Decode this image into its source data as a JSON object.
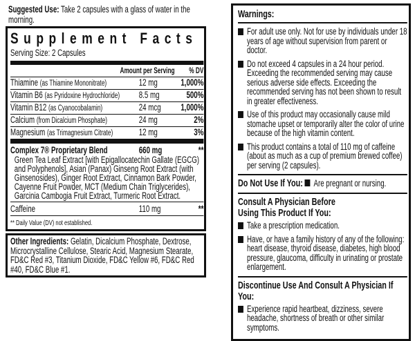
{
  "suggested_use": {
    "label": "Suggested Use:",
    "text": " Take 2 capsules with a glass of water in the morning."
  },
  "facts": {
    "title": "Supplement Facts",
    "serving_size": "Serving Size: 2 Capsules",
    "header": {
      "amount": "Amount per Serving",
      "dv": "% DV"
    },
    "rows": [
      {
        "name": "Thiamine",
        "source": "(as Thiamine Mononitrate)",
        "amount": "12 mg",
        "dv": "1,000%"
      },
      {
        "name": "Vitamin B6",
        "source": "(as Pyridoxine Hydrochloride)",
        "amount": "8.5 mg",
        "dv": "500%"
      },
      {
        "name": "Vitamin B12",
        "source": "(as Cyanocobalamin)",
        "amount": "24 mcg",
        "dv": "1,000%"
      },
      {
        "name": "Calcium",
        "source": "(from Dicalcium Phosphate)",
        "amount": "24 mg",
        "dv": "2%"
      },
      {
        "name": "Magnesium",
        "source": "(as Trimagnesium Citrate)",
        "amount": "12 mg",
        "dv": "3%"
      }
    ],
    "blend": {
      "name": "Complex 7® Proprietary Blend",
      "amount": "660 mg",
      "dv": "**",
      "ingredients": "Green Tea Leaf Extract [with Epigallocatechin Gallate (EGCG) and Polyphenols], Asian (Panax) Ginseng Root Extract (with Ginsenosides), Ginger Root Extract, Cinnamon Bark Powder, Cayenne Fruit Powder, MCT (Medium Chain Triglycerides), Garcinia Cambogia Fruit Extract, Turmeric Root Extract."
    },
    "caffeine": {
      "name": "Caffeine",
      "amount": "110 mg",
      "dv": "**"
    },
    "footnote": "** Daily Value (DV) not established."
  },
  "other": {
    "label": "Other Ingredients:",
    "text": " Gelatin, Dicalcium Phosphate, Dextrose, Microcrystalline Cellulose, Stearic Acid, Magnesium Stearate, FD&C Red #3, Titanium Dioxide, FD&C Yellow #6, FD&C Red #40, FD&C Blue #1."
  },
  "warnings": {
    "title": "Warnings:",
    "items": [
      "For adult use only. Not for use by individuals under 18 years of age without supervision from parent or doctor.",
      "Do not exceed 4 capsules in a 24 hour period. Exceeding the recommended serving may cause serious adverse side effects. Exceeding the recommended serving has not been shown to result in greater effectiveness.",
      "Use of this product may occasionally cause mild stomache upset or temporarily alter the color of urine because of the high vitamin content.",
      "This product contains a total of 110 mg of caffeine (about as much as a cup of premium brewed coffee) per serving (2 capsules)."
    ],
    "do_not_use": {
      "label": "Do Not Use If You:",
      "item": "Are pregnant or nursing."
    },
    "consult": {
      "title": "Consult A Physician Before Using This Product If You:",
      "items": [
        "Take a prescription medication.",
        "Have, or have a family history of any of the following: heart disease, thyroid disease, diabetes, high blood pressure, glaucoma, difficulty in urinating or prostate enlargement."
      ]
    },
    "discontinue": {
      "title": "Discontinue Use And Consult A Physician If You:",
      "items": [
        "Experience rapid heartbeat, dizziness, severe headache, shortness of breath or other similar symptoms."
      ]
    }
  }
}
